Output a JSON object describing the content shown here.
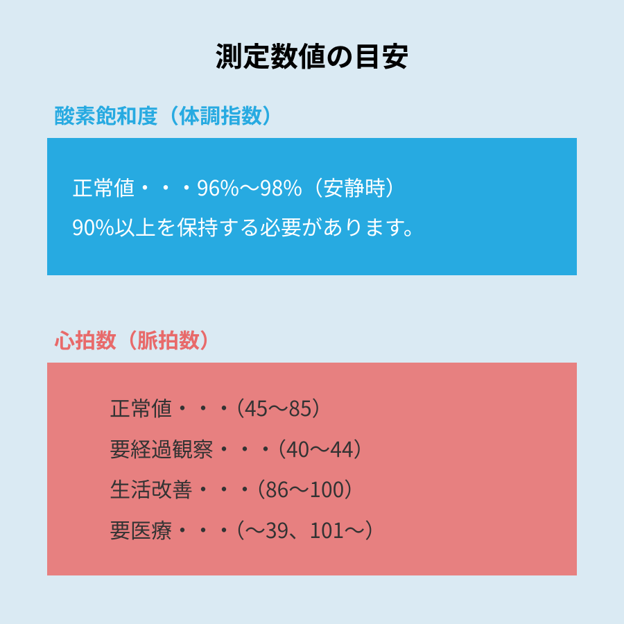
{
  "colors": {
    "background": "#daeaf3",
    "blue_accent": "#27aae1",
    "blue_box": "#27aae1",
    "red_accent": "#e86a6a",
    "red_box": "#e78080",
    "white_text": "#ffffff",
    "dark_text": "#333333"
  },
  "main_title": "測定数値の目安",
  "section1": {
    "header": "酸素飽和度（体調指数）",
    "lines": [
      "正常値・・・96%〜98%（安静時）",
      "90%以上を保持する必要があります。"
    ]
  },
  "section2": {
    "header": "心拍数（脈拍数）",
    "lines": [
      "正常値・・・（45〜85）",
      "要経過観察・・・（40〜44）",
      "生活改善・・・（86〜100）",
      "要医療・・・（〜39、101〜）"
    ]
  }
}
